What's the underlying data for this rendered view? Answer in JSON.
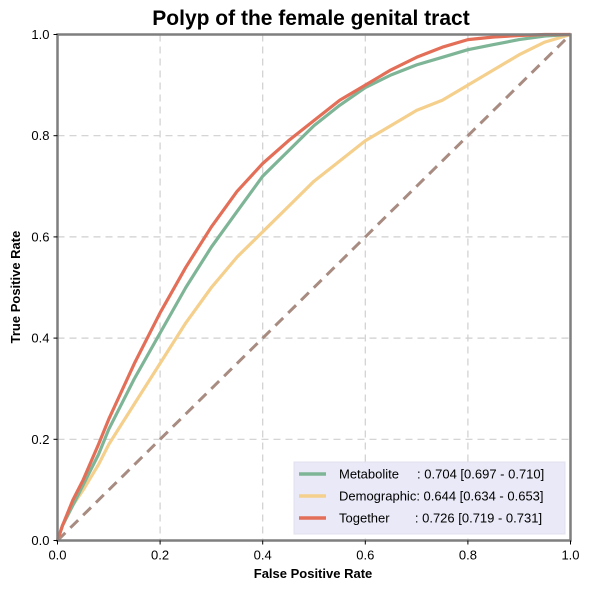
{
  "chart_data": {
    "type": "line",
    "title": "Polyp of the female genital tract",
    "xlabel": "False Positive Rate",
    "ylabel": "True Positive Rate",
    "xlim": [
      0,
      1
    ],
    "ylim": [
      0,
      1
    ],
    "x_ticks": [
      "0.0",
      "0.2",
      "0.4",
      "0.6",
      "0.8",
      "1.0"
    ],
    "y_ticks": [
      "0.0",
      "0.2",
      "0.4",
      "0.6",
      "0.8",
      "1.0"
    ],
    "grid": true,
    "legend_position": "bottom-right",
    "series": [
      {
        "name": "Metabolite",
        "legend_label": "Metabolite     : 0.704 [0.697 - 0.710]",
        "color": "#7fb597",
        "x": [
          0,
          0.01,
          0.03,
          0.05,
          0.08,
          0.1,
          0.15,
          0.2,
          0.25,
          0.3,
          0.35,
          0.4,
          0.45,
          0.5,
          0.55,
          0.6,
          0.65,
          0.7,
          0.75,
          0.8,
          0.85,
          0.9,
          0.95,
          1.0
        ],
        "y": [
          0,
          0.03,
          0.07,
          0.11,
          0.17,
          0.22,
          0.32,
          0.41,
          0.5,
          0.58,
          0.65,
          0.72,
          0.77,
          0.82,
          0.86,
          0.895,
          0.92,
          0.94,
          0.955,
          0.97,
          0.98,
          0.99,
          0.997,
          1.0
        ]
      },
      {
        "name": "Demographic",
        "legend_label": "Demographic: 0.644 [0.634 - 0.653]",
        "color": "#f5cf8c",
        "x": [
          0,
          0.01,
          0.03,
          0.05,
          0.08,
          0.1,
          0.15,
          0.2,
          0.25,
          0.3,
          0.35,
          0.4,
          0.45,
          0.5,
          0.55,
          0.6,
          0.65,
          0.7,
          0.75,
          0.8,
          0.85,
          0.9,
          0.95,
          1.0
        ],
        "y": [
          0,
          0.03,
          0.07,
          0.1,
          0.15,
          0.19,
          0.27,
          0.35,
          0.43,
          0.5,
          0.56,
          0.61,
          0.66,
          0.71,
          0.75,
          0.79,
          0.82,
          0.85,
          0.87,
          0.9,
          0.93,
          0.96,
          0.985,
          1.0
        ]
      },
      {
        "name": "Together",
        "legend_label": "Together       : 0.726 [0.719 - 0.731]",
        "color": "#e36f58",
        "x": [
          0,
          0.01,
          0.03,
          0.05,
          0.08,
          0.1,
          0.15,
          0.2,
          0.25,
          0.3,
          0.35,
          0.4,
          0.45,
          0.5,
          0.55,
          0.6,
          0.65,
          0.7,
          0.75,
          0.8,
          0.85,
          0.9,
          0.95,
          1.0
        ],
        "y": [
          0,
          0.03,
          0.08,
          0.12,
          0.19,
          0.24,
          0.35,
          0.45,
          0.54,
          0.62,
          0.69,
          0.745,
          0.79,
          0.83,
          0.87,
          0.9,
          0.93,
          0.955,
          0.975,
          0.99,
          0.995,
          0.998,
          1.0,
          1.0
        ]
      },
      {
        "name": "",
        "color": "#a88c82",
        "dashed": true,
        "x": [
          0,
          1
        ],
        "y": [
          0,
          1
        ]
      }
    ]
  }
}
